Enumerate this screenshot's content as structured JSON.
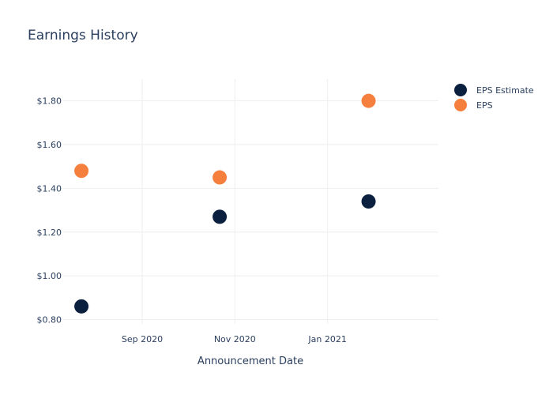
{
  "chart_data": {
    "type": "scatter",
    "title": "Earnings History",
    "xlabel": "Announcement Date",
    "ylabel": "",
    "x_axis_type": "date",
    "x_ticks": [
      {
        "date": "2020-09-01",
        "label": "Sep 2020"
      },
      {
        "date": "2020-11-01",
        "label": "Nov 2020"
      },
      {
        "date": "2021-01-01",
        "label": "Jan 2021"
      }
    ],
    "xlim": [
      "2020-07-11",
      "2021-03-15"
    ],
    "y_ticks": [
      {
        "value": 0.8,
        "label": "$0.80"
      },
      {
        "value": 1.0,
        "label": "$1.00"
      },
      {
        "value": 1.2,
        "label": "$1.20"
      },
      {
        "value": 1.4,
        "label": "$1.40"
      },
      {
        "value": 1.6,
        "label": "$1.60"
      },
      {
        "value": 1.8,
        "label": "$1.80"
      }
    ],
    "ylim": [
      0.78,
      1.9
    ],
    "grid": true,
    "legend_position": "top-right",
    "series": [
      {
        "name": "EPS Estimate",
        "color": "#0b1f3f",
        "points": [
          {
            "x": "2020-07-23",
            "y": 0.86
          },
          {
            "x": "2020-10-22",
            "y": 1.27
          },
          {
            "x": "2021-01-28",
            "y": 1.34
          }
        ]
      },
      {
        "name": "EPS",
        "color": "#f5803e",
        "points": [
          {
            "x": "2020-07-23",
            "y": 1.48
          },
          {
            "x": "2020-10-22",
            "y": 1.45
          },
          {
            "x": "2021-01-28",
            "y": 1.8
          }
        ]
      }
    ]
  }
}
